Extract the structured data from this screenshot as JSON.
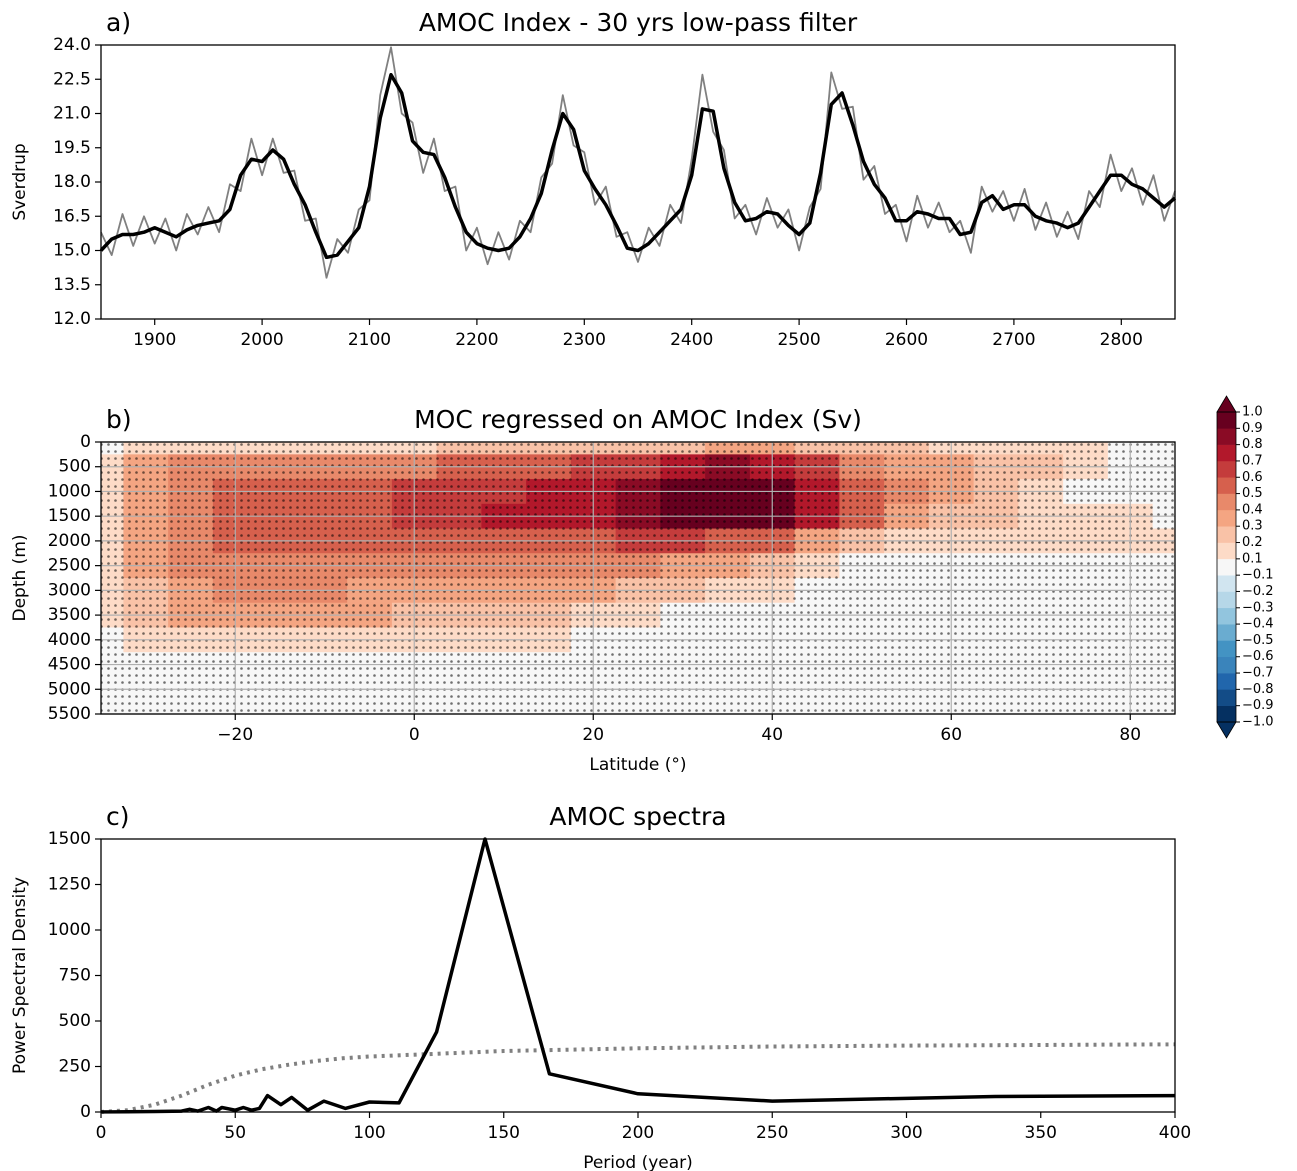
{
  "chart_data": [
    {
      "type": "line",
      "panel_label": "a)",
      "title": "AMOC Index - 30 yrs low-pass filter",
      "ylabel": "Sverdrup",
      "xlim": [
        1850,
        2850
      ],
      "xticks": [
        1900,
        2000,
        2100,
        2200,
        2300,
        2400,
        2500,
        2600,
        2700,
        2800
      ],
      "ylim": [
        12,
        24
      ],
      "yticks": [
        {
          "value": 12,
          "label": "12.0"
        },
        {
          "value": 13.5,
          "label": "13.5"
        },
        {
          "value": 15,
          "label": "15.0"
        },
        {
          "value": 16.5,
          "label": "16.5"
        },
        {
          "value": 18,
          "label": "18.0"
        },
        {
          "value": 19.5,
          "label": "19.5"
        },
        {
          "value": 21,
          "label": "21.0"
        },
        {
          "value": 22.5,
          "label": "22.5"
        },
        {
          "value": 24,
          "label": "24.0"
        }
      ],
      "x": [
        1850,
        1860,
        1870,
        1880,
        1890,
        1900,
        1910,
        1920,
        1930,
        1940,
        1950,
        1960,
        1970,
        1980,
        1990,
        2000,
        2010,
        2020,
        2030,
        2040,
        2050,
        2060,
        2070,
        2080,
        2090,
        2100,
        2110,
        2120,
        2130,
        2140,
        2150,
        2160,
        2170,
        2180,
        2190,
        2200,
        2210,
        2220,
        2230,
        2240,
        2250,
        2260,
        2270,
        2280,
        2290,
        2300,
        2310,
        2320,
        2330,
        2340,
        2350,
        2360,
        2370,
        2380,
        2390,
        2400,
        2410,
        2420,
        2430,
        2440,
        2450,
        2460,
        2470,
        2480,
        2490,
        2500,
        2510,
        2520,
        2530,
        2540,
        2550,
        2560,
        2570,
        2580,
        2590,
        2600,
        2610,
        2620,
        2630,
        2640,
        2650,
        2660,
        2670,
        2680,
        2690,
        2700,
        2710,
        2720,
        2730,
        2740,
        2750,
        2760,
        2770,
        2780,
        2790,
        2800,
        2810,
        2820,
        2830,
        2840,
        2850
      ],
      "series": [
        {
          "color": "#808080",
          "linestyle": "solid",
          "width": 1.8,
          "values": [
            15.8,
            14.8,
            16.6,
            15.2,
            16.5,
            15.3,
            16.4,
            15.0,
            16.6,
            15.7,
            16.9,
            15.8,
            17.9,
            17.6,
            19.9,
            18.3,
            19.9,
            18.4,
            18.5,
            16.3,
            16.4,
            13.8,
            15.5,
            14.9,
            16.8,
            17.2,
            21.8,
            23.9,
            21.0,
            20.6,
            18.4,
            19.9,
            17.6,
            17.8,
            15.0,
            16.0,
            14.4,
            15.8,
            14.6,
            16.3,
            15.8,
            18.2,
            18.8,
            21.8,
            19.6,
            19.3,
            17.0,
            17.8,
            15.6,
            15.8,
            14.5,
            16.0,
            15.2,
            17.0,
            16.2,
            19.0,
            22.7,
            20.2,
            19.4,
            16.4,
            17.0,
            15.7,
            17.3,
            16.0,
            16.8,
            15.0,
            16.9,
            17.7,
            22.8,
            21.2,
            21.3,
            18.1,
            18.7,
            16.6,
            17.0,
            15.4,
            17.4,
            16.0,
            17.1,
            15.8,
            16.3,
            14.9,
            17.8,
            16.7,
            17.6,
            16.3,
            17.7,
            15.9,
            17.1,
            15.6,
            16.7,
            15.5,
            17.6,
            16.9,
            19.2,
            17.6,
            18.6,
            17.0,
            18.3,
            16.3,
            17.6
          ]
        },
        {
          "color": "#000000",
          "linestyle": "solid",
          "width": 3.5,
          "values": [
            15.0,
            15.5,
            15.7,
            15.7,
            15.8,
            16.0,
            15.8,
            15.6,
            15.9,
            16.1,
            16.2,
            16.3,
            16.8,
            18.3,
            19.0,
            18.9,
            19.4,
            19.0,
            17.9,
            17.0,
            15.8,
            14.7,
            14.8,
            15.4,
            16.0,
            17.8,
            20.8,
            22.7,
            21.9,
            19.8,
            19.3,
            19.2,
            18.2,
            16.9,
            15.8,
            15.3,
            15.1,
            15.0,
            15.1,
            15.6,
            16.4,
            17.5,
            19.4,
            21.0,
            20.3,
            18.5,
            17.7,
            17.0,
            16.1,
            15.1,
            15.0,
            15.3,
            15.8,
            16.3,
            16.8,
            18.3,
            21.2,
            21.1,
            18.6,
            17.1,
            16.3,
            16.4,
            16.7,
            16.6,
            16.1,
            15.7,
            16.2,
            18.4,
            21.4,
            21.9,
            20.5,
            18.9,
            17.9,
            17.3,
            16.3,
            16.3,
            16.7,
            16.6,
            16.4,
            16.4,
            15.7,
            15.8,
            17.1,
            17.4,
            16.8,
            17.0,
            17.0,
            16.5,
            16.3,
            16.2,
            16.0,
            16.2,
            16.9,
            17.6,
            18.3,
            18.3,
            17.9,
            17.7,
            17.3,
            16.9,
            17.3
          ]
        }
      ]
    },
    {
      "type": "contour",
      "panel_label": "b)",
      "title": "MOC regressed on AMOC Index (Sv)",
      "xlabel": "Latitude (°)",
      "ylabel": "Depth (m)",
      "xlim": [
        -35,
        85
      ],
      "xticks": [
        {
          "value": -20,
          "label": "−20"
        },
        0,
        20,
        40,
        60,
        80
      ],
      "ylim": [
        0,
        5500
      ],
      "y_inverted": true,
      "yticks": [
        0,
        500,
        1000,
        1500,
        2000,
        2500,
        3000,
        3500,
        4000,
        4500,
        5000,
        5500
      ],
      "grid": true,
      "lat": [
        -35,
        -30,
        -25,
        -20,
        -15,
        -10,
        -5,
        0,
        5,
        10,
        15,
        20,
        25,
        30,
        35,
        40,
        45,
        50,
        55,
        60,
        65,
        70,
        75,
        80,
        85
      ],
      "depth": [
        0,
        500,
        1000,
        1500,
        2000,
        2500,
        3000,
        3500,
        4000,
        4500,
        5000,
        5500
      ],
      "z": [
        [
          0.05,
          0.1,
          0.15,
          0.15,
          0.15,
          0.15,
          0.15,
          0.15,
          0.2,
          0.2,
          0.2,
          0.2,
          0.2,
          0.25,
          0.3,
          0.3,
          0.25,
          0.2,
          0.2,
          0.15,
          0.1,
          0.1,
          0.1,
          0.05,
          0.05
        ],
        [
          0.1,
          0.3,
          0.4,
          0.45,
          0.45,
          0.45,
          0.45,
          0.45,
          0.5,
          0.5,
          0.55,
          0.6,
          0.65,
          0.75,
          0.8,
          0.75,
          0.6,
          0.45,
          0.35,
          0.3,
          0.25,
          0.2,
          0.15,
          0.05,
          0.05
        ],
        [
          0.15,
          0.35,
          0.45,
          0.55,
          0.55,
          0.55,
          0.55,
          0.6,
          0.65,
          0.65,
          0.7,
          0.75,
          0.8,
          0.9,
          0.95,
          0.95,
          0.75,
          0.55,
          0.4,
          0.3,
          0.25,
          0.15,
          0.05,
          0,
          0
        ],
        [
          0.15,
          0.35,
          0.45,
          0.55,
          0.55,
          0.55,
          0.55,
          0.6,
          0.65,
          0.7,
          0.7,
          0.75,
          0.8,
          0.9,
          0.95,
          0.9,
          0.7,
          0.5,
          0.35,
          0.25,
          0.2,
          0.15,
          0.15,
          0.1,
          0.05
        ],
        [
          0.15,
          0.3,
          0.45,
          0.5,
          0.5,
          0.5,
          0.5,
          0.5,
          0.5,
          0.55,
          0.55,
          0.55,
          0.6,
          0.6,
          0.55,
          0.5,
          0.35,
          0.25,
          0.15,
          0.1,
          0.1,
          0.1,
          0.1,
          0.1,
          0.1
        ],
        [
          0.15,
          0.3,
          0.4,
          0.45,
          0.45,
          0.45,
          0.45,
          0.45,
          0.45,
          0.45,
          0.45,
          0.4,
          0.4,
          0.35,
          0.3,
          0.25,
          0.15,
          0.05,
          0,
          0,
          0,
          0,
          0,
          0.05,
          0.05
        ],
        [
          0.15,
          0.25,
          0.35,
          0.4,
          0.4,
          0.4,
          0.35,
          0.35,
          0.35,
          0.35,
          0.3,
          0.3,
          0.25,
          0.2,
          0.15,
          0.1,
          0.05,
          0,
          0,
          0,
          0,
          0,
          0,
          0,
          0
        ],
        [
          0.1,
          0.2,
          0.3,
          0.3,
          0.3,
          0.3,
          0.3,
          0.25,
          0.25,
          0.25,
          0.2,
          0.15,
          0.1,
          0.05,
          0,
          0,
          0,
          0,
          0,
          0,
          0,
          0,
          0,
          0,
          0
        ],
        [
          0.05,
          0.1,
          0.15,
          0.15,
          0.15,
          0.15,
          0.1,
          0.1,
          0.1,
          0.1,
          0.1,
          0,
          0,
          0,
          0,
          0,
          0,
          0,
          0,
          0,
          0,
          0,
          0,
          0,
          0
        ],
        [
          0,
          0,
          0,
          0,
          0,
          0,
          0,
          0,
          0,
          0,
          0,
          0,
          0,
          0,
          0,
          0,
          0,
          0,
          0,
          0,
          0,
          0,
          0,
          0,
          0
        ],
        [
          0,
          0,
          0,
          0,
          0,
          0,
          0,
          0,
          0,
          0,
          0,
          0,
          0,
          0,
          0,
          0,
          0,
          0,
          0,
          0,
          0,
          0,
          0,
          0,
          0
        ],
        [
          0,
          0,
          0,
          0,
          0,
          0,
          0,
          0,
          0,
          0,
          0,
          0,
          0,
          0,
          0,
          0,
          0,
          0,
          0,
          0,
          0,
          0,
          0,
          0,
          0
        ]
      ],
      "colorbar": {
        "boundaries": [
          -1,
          -0.9,
          -0.8,
          -0.7,
          -0.6,
          -0.5,
          -0.4,
          -0.3,
          -0.2,
          -0.1,
          0.1,
          0.2,
          0.3,
          0.4,
          0.5,
          0.6,
          0.7,
          0.8,
          0.9,
          1
        ],
        "colors": [
          "#053061",
          "#134c87",
          "#2166ac",
          "#3a84bb",
          "#4393c3",
          "#6aacd0",
          "#92c5de",
          "#b6d7e8",
          "#d1e5f0",
          "#f7f7f7",
          "#fddbc7",
          "#f9c2a7",
          "#f4a582",
          "#e8896a",
          "#d6604d",
          "#c43c3c",
          "#b2182b",
          "#8a0b25",
          "#67001f"
        ],
        "extend_colors": [
          "#053061",
          "#67001f"
        ],
        "ticks": [
          {
            "value": 1,
            "label": "1.0"
          },
          0.9,
          0.8,
          0.7,
          0.6,
          0.5,
          0.4,
          0.3,
          0.2,
          0.1,
          {
            "value": -0.1,
            "label": "−0.1"
          },
          {
            "value": -0.2,
            "label": "−0.2"
          },
          {
            "value": -0.3,
            "label": "−0.3"
          },
          {
            "value": -0.4,
            "label": "−0.4"
          },
          {
            "value": -0.5,
            "label": "−0.5"
          },
          {
            "value": -0.6,
            "label": "−0.6"
          },
          {
            "value": -0.7,
            "label": "−0.7"
          },
          {
            "value": -0.8,
            "label": "−0.8"
          },
          {
            "value": -0.9,
            "label": "−0.9"
          },
          {
            "value": -1,
            "label": "−1.0"
          }
        ]
      }
    },
    {
      "type": "line",
      "panel_label": "c)",
      "title": "AMOC spectra",
      "xlabel": "Period (year)",
      "ylabel": "Power Spectral Density",
      "xlim": [
        0,
        400
      ],
      "xticks": [
        0,
        50,
        100,
        150,
        200,
        250,
        300,
        350,
        400
      ],
      "ylim": [
        0,
        1500
      ],
      "yticks": [
        0,
        250,
        500,
        750,
        1000,
        1250,
        1500
      ],
      "series": [
        {
          "color": "#808080",
          "linestyle": "dotted",
          "width": 4,
          "x": [
            0,
            10,
            20,
            30,
            40,
            50,
            60,
            70,
            80,
            90,
            100,
            125,
            150,
            200,
            250,
            300,
            350,
            400
          ],
          "values": [
            0,
            10,
            40,
            90,
            150,
            200,
            235,
            260,
            280,
            295,
            305,
            320,
            335,
            350,
            360,
            365,
            368,
            372
          ]
        },
        {
          "color": "#000000",
          "linestyle": "solid",
          "width": 3.5,
          "x": [
            0,
            20,
            30,
            33,
            36,
            40,
            43,
            45,
            50,
            53,
            56,
            59,
            62,
            67,
            71,
            77,
            83,
            91,
            100,
            111,
            125,
            143,
            167,
            200,
            250,
            333,
            400
          ],
          "values": [
            0,
            3,
            5,
            15,
            5,
            25,
            5,
            25,
            10,
            25,
            10,
            20,
            90,
            40,
            80,
            10,
            60,
            20,
            55,
            50,
            440,
            1500,
            210,
            100,
            60,
            85,
            90
          ]
        }
      ]
    }
  ]
}
